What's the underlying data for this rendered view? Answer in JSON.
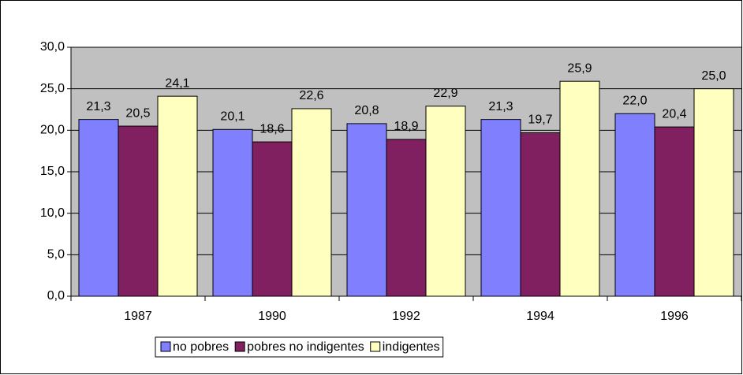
{
  "chart_data": {
    "type": "bar",
    "categories": [
      "1987",
      "1990",
      "1992",
      "1994",
      "1996"
    ],
    "series": [
      {
        "name": "no pobres",
        "color": "#8080ff",
        "values": [
          21.3,
          20.1,
          20.8,
          21.3,
          22.0
        ],
        "value_labels": [
          "21,3",
          "20,1",
          "20,8",
          "21,3",
          "22,0"
        ]
      },
      {
        "name": "pobres no indigentes",
        "color": "#802060",
        "values": [
          20.5,
          18.6,
          18.9,
          19.7,
          20.4
        ],
        "value_labels": [
          "20,5",
          "18,6",
          "18,9",
          "19,7",
          "20,4"
        ]
      },
      {
        "name": "indigentes",
        "color": "#ffffc0",
        "values": [
          24.1,
          22.6,
          22.9,
          25.9,
          25.0
        ],
        "value_labels": [
          "24,1",
          "22,6",
          "22,9",
          "25,9",
          "25,0"
        ]
      }
    ],
    "ylim": [
      0,
      30
    ],
    "yticks": [
      {
        "value": 0,
        "label": "0,0"
      },
      {
        "value": 5,
        "label": "5,0"
      },
      {
        "value": 10,
        "label": "10,0"
      },
      {
        "value": 15,
        "label": "15,0"
      },
      {
        "value": 20,
        "label": "20,0"
      },
      {
        "value": 25,
        "label": "25,0"
      },
      {
        "value": 30,
        "label": "30,0"
      }
    ],
    "grid": true,
    "legend": "bottom"
  }
}
